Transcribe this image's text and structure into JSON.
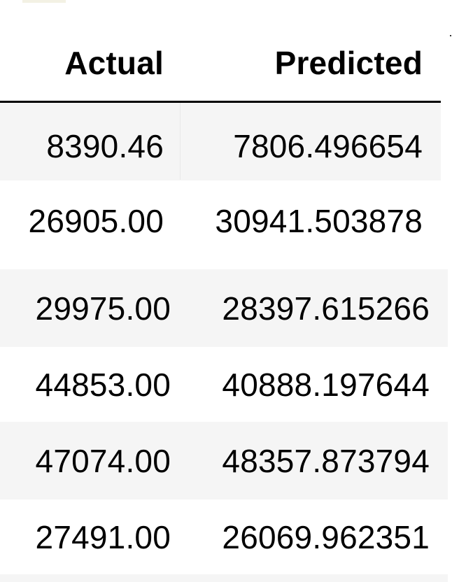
{
  "table": {
    "columns": [
      "Actual",
      "Predicted"
    ],
    "rows": [
      [
        "8390.46",
        "7806.496654"
      ],
      [
        "26905.00",
        "30941.503878"
      ],
      [
        "29975.00",
        "28397.615266"
      ],
      [
        "44853.00",
        "40888.197644"
      ],
      [
        "47074.00",
        "48357.873794"
      ],
      [
        "27491.00",
        "26069.962351"
      ]
    ]
  },
  "colors": {
    "header_rule": "#000000",
    "striped_row": "#f5f5f5",
    "text": "#000000"
  }
}
